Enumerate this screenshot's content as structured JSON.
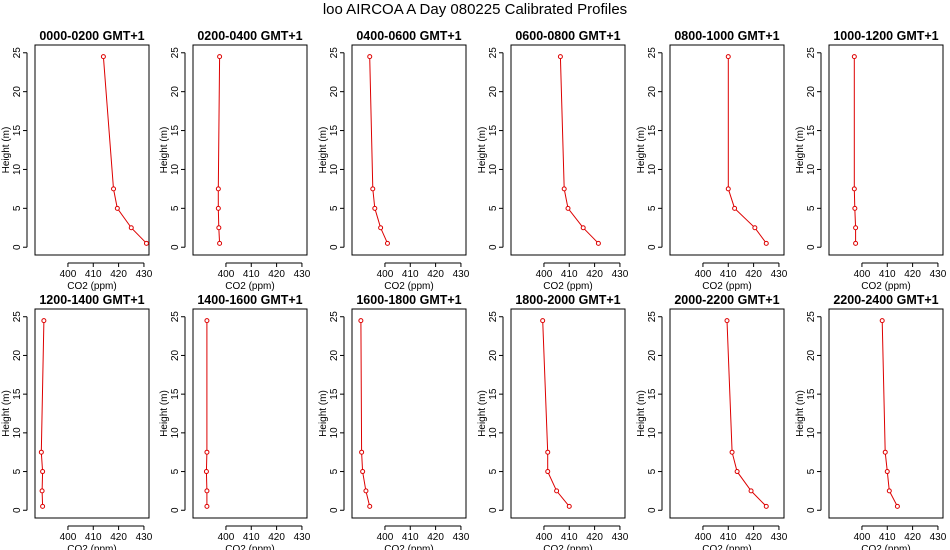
{
  "title": "loo AIRCOA A  Day 080225  Calibrated Profiles",
  "colors": {
    "series": "#dd0000",
    "axis": "#000000"
  },
  "chart_data": {
    "type": "line",
    "xlabel": "CO2 (ppm)",
    "ylabel": "Height (m)",
    "xlim": [
      387,
      432
    ],
    "ylim": [
      -1,
      26
    ],
    "xticks": [
      400,
      410,
      420,
      430
    ],
    "yticks": [
      0,
      5,
      10,
      15,
      20,
      25
    ],
    "panels": [
      {
        "title": "0000-0200 GMT+1",
        "points": [
          [
            431,
            0.5
          ],
          [
            425,
            2.5
          ],
          [
            419.5,
            5
          ],
          [
            418,
            7.5
          ],
          [
            414,
            24.5
          ]
        ]
      },
      {
        "title": "0200-0400 GMT+1",
        "points": [
          [
            397.5,
            0.5
          ],
          [
            397.2,
            2.5
          ],
          [
            397,
            5
          ],
          [
            397,
            7.5
          ],
          [
            397.5,
            24.5
          ]
        ]
      },
      {
        "title": "0400-0600 GMT+1",
        "points": [
          [
            401,
            0.5
          ],
          [
            398.3,
            2.5
          ],
          [
            396,
            5
          ],
          [
            395.2,
            7.5
          ],
          [
            394,
            24.5
          ]
        ]
      },
      {
        "title": "0600-0800 GMT+1",
        "points": [
          [
            421.5,
            0.5
          ],
          [
            415.5,
            2.5
          ],
          [
            409.5,
            5
          ],
          [
            408,
            7.5
          ],
          [
            406.5,
            24.5
          ]
        ]
      },
      {
        "title": "0800-1000 GMT+1",
        "points": [
          [
            425,
            0.5
          ],
          [
            420.5,
            2.5
          ],
          [
            412.5,
            5
          ],
          [
            410,
            7.5
          ],
          [
            410,
            24.5
          ]
        ]
      },
      {
        "title": "1000-1200 GMT+1",
        "points": [
          [
            397.5,
            0.5
          ],
          [
            397.5,
            2.5
          ],
          [
            397.2,
            5
          ],
          [
            397,
            7.5
          ],
          [
            397,
            24.5
          ]
        ]
      },
      {
        "title": "1200-1400 GMT+1",
        "points": [
          [
            390,
            0.5
          ],
          [
            389.8,
            2.5
          ],
          [
            390,
            5
          ],
          [
            389.5,
            7.5
          ],
          [
            390.5,
            24.5
          ]
        ]
      },
      {
        "title": "1400-1600 GMT+1",
        "points": [
          [
            392.5,
            0.5
          ],
          [
            392.5,
            2.5
          ],
          [
            392.3,
            5
          ],
          [
            392.5,
            7.5
          ],
          [
            392.5,
            24.5
          ]
        ]
      },
      {
        "title": "1600-1800 GMT+1",
        "points": [
          [
            394,
            0.5
          ],
          [
            392.5,
            2.5
          ],
          [
            391.2,
            5
          ],
          [
            390.8,
            7.5
          ],
          [
            390.5,
            24.5
          ]
        ]
      },
      {
        "title": "1800-2000 GMT+1",
        "points": [
          [
            410,
            0.5
          ],
          [
            405,
            2.5
          ],
          [
            401.5,
            5
          ],
          [
            401.5,
            7.5
          ],
          [
            399.5,
            24.5
          ]
        ]
      },
      {
        "title": "2000-2200 GMT+1",
        "points": [
          [
            425,
            0.5
          ],
          [
            419,
            2.5
          ],
          [
            413.5,
            5
          ],
          [
            411.5,
            7.5
          ],
          [
            409.5,
            24.5
          ]
        ]
      },
      {
        "title": "2200-2400 GMT+1",
        "points": [
          [
            414,
            0.5
          ],
          [
            410.8,
            2.5
          ],
          [
            410,
            5
          ],
          [
            409.2,
            7.5
          ],
          [
            408,
            24.5
          ]
        ]
      }
    ]
  }
}
